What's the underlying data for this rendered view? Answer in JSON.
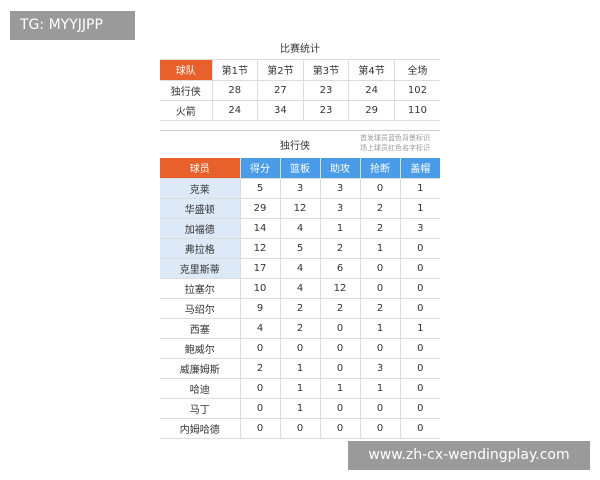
{
  "watermark": "TG: MYYJJPP",
  "url": "www.zh-cx-wendingplay.com",
  "game": {
    "title": "比赛统计",
    "headers": [
      "球队",
      "第1节",
      "第2节",
      "第3节",
      "第4节",
      "全场"
    ],
    "rows": [
      [
        "独行侠",
        "28",
        "27",
        "23",
        "24",
        "102"
      ],
      [
        "火箭",
        "24",
        "34",
        "23",
        "29",
        "110"
      ]
    ]
  },
  "players": {
    "team": "独行侠",
    "note1": "首发球员蓝色背景标识",
    "note2": "场上球员红色名字标识",
    "headers": [
      "球员",
      "得分",
      "篮板",
      "助攻",
      "抢断",
      "盖帽"
    ],
    "rows": [
      [
        "克莱",
        "5",
        "3",
        "3",
        "0",
        "1"
      ],
      [
        "华盛顿",
        "29",
        "12",
        "3",
        "2",
        "1"
      ],
      [
        "加福德",
        "14",
        "4",
        "1",
        "2",
        "3"
      ],
      [
        "弗拉格",
        "12",
        "5",
        "2",
        "1",
        "0"
      ],
      [
        "克里斯蒂",
        "17",
        "4",
        "6",
        "0",
        "0"
      ],
      [
        "拉塞尔",
        "10",
        "4",
        "12",
        "0",
        "0"
      ],
      [
        "马绍尔",
        "9",
        "2",
        "2",
        "2",
        "0"
      ],
      [
        "西塞",
        "4",
        "2",
        "0",
        "1",
        "1"
      ],
      [
        "鲍威尔",
        "0",
        "0",
        "0",
        "0",
        "0"
      ],
      [
        "威廉姆斯",
        "2",
        "1",
        "0",
        "3",
        "0"
      ],
      [
        "哈迪",
        "0",
        "1",
        "1",
        "1",
        "0"
      ],
      [
        "马丁",
        "0",
        "1",
        "0",
        "0",
        "0"
      ],
      [
        "内姆哈德",
        "0",
        "0",
        "0",
        "0",
        "0"
      ]
    ],
    "starters": 5
  },
  "colors": {
    "header_orange": "#e8602c",
    "header_blue": "#4a9ce8",
    "starter_bg": "#dde9f7"
  }
}
